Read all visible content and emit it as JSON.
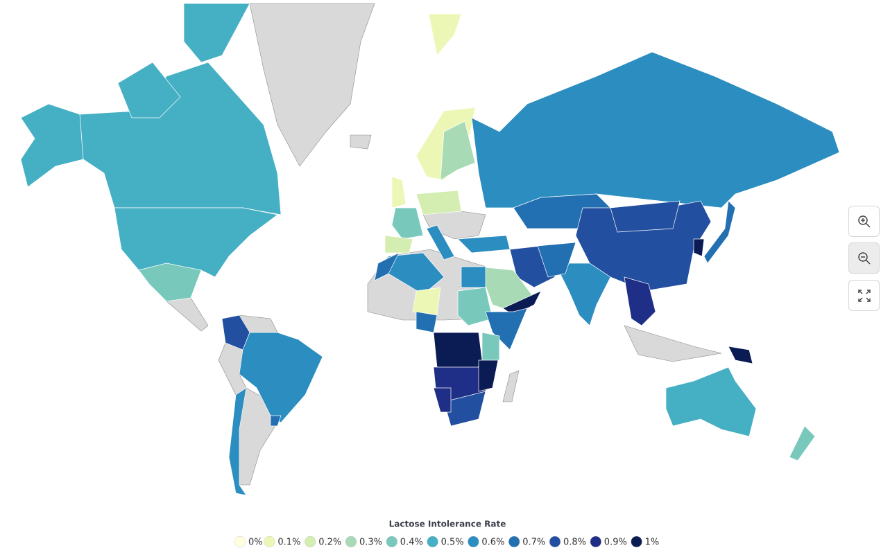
{
  "legend": {
    "title": "Lactose Intolerance Rate",
    "items": [
      {
        "value": 0,
        "label": "0%",
        "color": "#ffffe0"
      },
      {
        "value": 0.1,
        "label": "0.1%",
        "color": "#edf7b5"
      },
      {
        "value": 0.2,
        "label": "0.2%",
        "color": "#d4edb0"
      },
      {
        "value": 0.3,
        "label": "0.3%",
        "color": "#a8dbb5"
      },
      {
        "value": 0.4,
        "label": "0.4%",
        "color": "#78c9bc"
      },
      {
        "value": 0.5,
        "label": "0.5%",
        "color": "#45afc3"
      },
      {
        "value": 0.6,
        "label": "0.6%",
        "color": "#2b8dc0"
      },
      {
        "value": 0.7,
        "label": "0.7%",
        "color": "#2270b1"
      },
      {
        "value": 0.8,
        "label": "0.8%",
        "color": "#234fa0"
      },
      {
        "value": 0.9,
        "label": "0.9%",
        "color": "#1f2e86"
      },
      {
        "value": 1,
        "label": "1%",
        "color": "#0b1c54"
      }
    ]
  },
  "regions": [
    {
      "value": 0.5
    },
    {
      "value": 0.5
    },
    {
      "value": 0.5
    },
    {
      "value": 0.5
    },
    {
      "value": 0.5
    },
    {
      "value": 0.4
    },
    {
      "value": 0.8
    },
    {
      "value": 0.6
    },
    {
      "value": 0.6
    },
    {
      "value": 0.7
    },
    {
      "value": 0.1
    },
    {
      "value": 0.1
    },
    {
      "value": 0.3
    },
    {
      "value": 0.4
    },
    {
      "value": 0.2
    },
    {
      "value": 0.2
    },
    {
      "value": 0.6
    },
    {
      "value": 0.6
    },
    {
      "value": 0.7
    },
    {
      "value": 0.6
    },
    {
      "value": 0.8
    },
    {
      "value": 0.3
    },
    {
      "value": 1
    },
    {
      "value": 0.8
    },
    {
      "value": 0.8
    },
    {
      "value": 0.6
    },
    {
      "value": 0.7
    },
    {
      "value": 0.9
    },
    {
      "value": 1
    },
    {
      "value": 0.7
    },
    {
      "value": 1
    },
    {
      "value": 0.5
    },
    {
      "value": 0.4
    },
    {
      "value": 0.6
    },
    {
      "value": 0.7
    },
    {
      "value": 0.1
    },
    {
      "value": 0.6
    },
    {
      "value": 0.4
    },
    {
      "value": 0.7
    },
    {
      "value": 0.7
    },
    {
      "value": 0.4
    },
    {
      "value": 1
    },
    {
      "value": 0.9
    },
    {
      "value": 1
    },
    {
      "value": 0.8
    },
    {
      "value": 0.9
    },
    {
      "value": 0.1
    }
  ]
}
